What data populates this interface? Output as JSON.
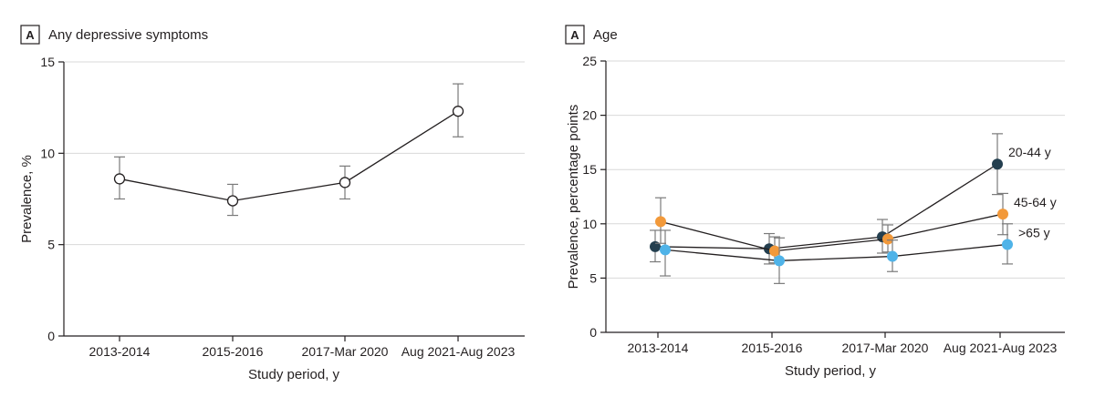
{
  "chart_data": [
    {
      "type": "line",
      "panel": "A",
      "title": "Any depressive symptoms",
      "xlabel": "Study period, y",
      "ylabel": "Prevalence, %",
      "ylim": [
        0,
        15
      ],
      "yticks": [
        0,
        5,
        10,
        15
      ],
      "grid": true,
      "categories": [
        "2013-2014",
        "2015-2016",
        "2017-Mar 2020",
        "Aug 2021-Aug 2023"
      ],
      "series": [
        {
          "name": "Any depressive symptoms",
          "color": "#ffffff",
          "marker": "open-circle",
          "values": [
            8.6,
            7.4,
            8.4,
            12.3
          ],
          "ci_low": [
            7.5,
            6.6,
            7.5,
            10.9
          ],
          "ci_high": [
            9.8,
            8.3,
            9.3,
            13.8
          ]
        }
      ]
    },
    {
      "type": "line",
      "panel": "A",
      "title": "Age",
      "xlabel": "Study period, y",
      "ylabel": "Prevalence, percentage points",
      "ylim": [
        0,
        25
      ],
      "yticks": [
        0,
        5,
        10,
        15,
        20,
        25
      ],
      "grid": true,
      "categories": [
        "2013-2014",
        "2015-2016",
        "2017-Mar 2020",
        "Aug 2021-Aug 2023"
      ],
      "series": [
        {
          "name": "20-44 y",
          "color": "#243f4f",
          "values": [
            7.9,
            7.7,
            8.8,
            15.5
          ],
          "ci_low": [
            6.5,
            6.3,
            7.3,
            12.7
          ],
          "ci_high": [
            9.4,
            9.1,
            10.4,
            18.3
          ]
        },
        {
          "name": "45-64 y",
          "color": "#f2993a",
          "values": [
            10.2,
            7.5,
            8.6,
            10.9
          ],
          "ci_low": [
            8.2,
            6.4,
            7.4,
            9.0
          ],
          "ci_high": [
            12.4,
            8.8,
            9.9,
            12.8
          ]
        },
        {
          "name": ">65 y",
          "color": "#4fb3e8",
          "values": [
            7.6,
            6.6,
            7.0,
            8.1
          ],
          "ci_low": [
            5.2,
            4.5,
            5.6,
            6.3
          ],
          "ci_high": [
            9.4,
            8.7,
            8.5,
            10.0
          ]
        }
      ]
    }
  ]
}
